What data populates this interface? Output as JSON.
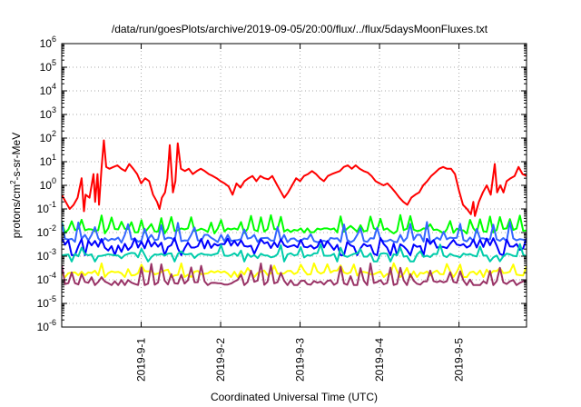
{
  "chart_data": {
    "type": "line",
    "title": "/data/run/goesPlots/archive/2019-09-05/20:00/flux/../flux/5daysMoonFluxes.txt",
    "xlabel": "Coordinated Universal Time (UTC)",
    "ylabel_base": "protons/cm",
    "ylabel_sup": "2",
    "ylabel_tail": "-s-sr-MeV",
    "y_scale": "log",
    "ylim": [
      1e-06,
      1000000.0
    ],
    "xlim": [
      0,
      5.85
    ],
    "x_unit": "days since 2019-08-31 00:00 UTC",
    "grid": true,
    "y_ticks": [
      {
        "base": "10",
        "exp": "-6",
        "v": -6
      },
      {
        "base": "10",
        "exp": "-5",
        "v": -5
      },
      {
        "base": "10",
        "exp": "-4",
        "v": -4
      },
      {
        "base": "10",
        "exp": "-3",
        "v": -3
      },
      {
        "base": "10",
        "exp": "-2",
        "v": -2
      },
      {
        "base": "10",
        "exp": "-1",
        "v": -1
      },
      {
        "base": "10",
        "exp": "0",
        "v": 0
      },
      {
        "base": "10",
        "exp": "1",
        "v": 1
      },
      {
        "base": "10",
        "exp": "2",
        "v": 2
      },
      {
        "base": "10",
        "exp": "3",
        "v": 3
      },
      {
        "base": "10",
        "exp": "4",
        "v": 4
      },
      {
        "base": "10",
        "exp": "5",
        "v": 5
      },
      {
        "base": "10",
        "exp": "6",
        "v": 6
      }
    ],
    "x_ticks": [
      {
        "label": "2019-9-1",
        "x": 1
      },
      {
        "label": "2019-9-2",
        "x": 2
      },
      {
        "label": "2019-9-3",
        "x": 3
      },
      {
        "label": "2019-9-4",
        "x": 4
      },
      {
        "label": "2019-9-5",
        "x": 5
      }
    ],
    "series": [
      {
        "color": "#ff0000",
        "points": [
          [
            0.0,
            0.4
          ],
          [
            0.05,
            0.2
          ],
          [
            0.1,
            0.1
          ],
          [
            0.15,
            0.15
          ],
          [
            0.2,
            0.3
          ],
          [
            0.25,
            2
          ],
          [
            0.28,
            0.08
          ],
          [
            0.3,
            0.4
          ],
          [
            0.35,
            0.3
          ],
          [
            0.4,
            3
          ],
          [
            0.42,
            0.2
          ],
          [
            0.45,
            3
          ],
          [
            0.47,
            0.15
          ],
          [
            0.5,
            5
          ],
          [
            0.53,
            80
          ],
          [
            0.56,
            6
          ],
          [
            0.6,
            5
          ],
          [
            0.65,
            6
          ],
          [
            0.7,
            7
          ],
          [
            0.75,
            5
          ],
          [
            0.8,
            4
          ],
          [
            0.85,
            8
          ],
          [
            0.9,
            5
          ],
          [
            0.95,
            3
          ],
          [
            1.0,
            1.2
          ],
          [
            1.05,
            2
          ],
          [
            1.1,
            1.5
          ],
          [
            1.15,
            0.4
          ],
          [
            1.2,
            0.2
          ],
          [
            1.23,
            0.1
          ],
          [
            1.26,
            0.3
          ],
          [
            1.3,
            0.5
          ],
          [
            1.33,
            2
          ],
          [
            1.36,
            50
          ],
          [
            1.4,
            0.5
          ],
          [
            1.43,
            1.5
          ],
          [
            1.46,
            60
          ],
          [
            1.5,
            5
          ],
          [
            1.55,
            4
          ],
          [
            1.6,
            5
          ],
          [
            1.65,
            3
          ],
          [
            1.7,
            4
          ],
          [
            1.75,
            5
          ],
          [
            1.8,
            4
          ],
          [
            1.85,
            3
          ],
          [
            1.9,
            2.5
          ],
          [
            1.95,
            2
          ],
          [
            2.0,
            1.5
          ],
          [
            2.05,
            1.2
          ],
          [
            2.1,
            0.9
          ],
          [
            2.15,
            0.4
          ],
          [
            2.2,
            1.2
          ],
          [
            2.25,
            0.8
          ],
          [
            2.3,
            1.5
          ],
          [
            2.35,
            2
          ],
          [
            2.4,
            2.5
          ],
          [
            2.45,
            1.5
          ],
          [
            2.5,
            2.5
          ],
          [
            2.55,
            2
          ],
          [
            2.6,
            1.8
          ],
          [
            2.65,
            2.5
          ],
          [
            2.7,
            1.2
          ],
          [
            2.75,
            0.6
          ],
          [
            2.8,
            0.3
          ],
          [
            2.85,
            0.5
          ],
          [
            2.9,
            1
          ],
          [
            2.95,
            2
          ],
          [
            3.0,
            1.5
          ],
          [
            3.05,
            2.5
          ],
          [
            3.1,
            3
          ],
          [
            3.15,
            4
          ],
          [
            3.2,
            3
          ],
          [
            3.25,
            2
          ],
          [
            3.3,
            1.5
          ],
          [
            3.35,
            2.5
          ],
          [
            3.4,
            3
          ],
          [
            3.45,
            3.5
          ],
          [
            3.5,
            4
          ],
          [
            3.55,
            6
          ],
          [
            3.6,
            7
          ],
          [
            3.65,
            5
          ],
          [
            3.7,
            7
          ],
          [
            3.75,
            5
          ],
          [
            3.8,
            4
          ],
          [
            3.85,
            3.5
          ],
          [
            3.9,
            2.5
          ],
          [
            3.95,
            1.5
          ],
          [
            4.0,
            1.2
          ],
          [
            4.05,
            1
          ],
          [
            4.1,
            1.2
          ],
          [
            4.15,
            0.8
          ],
          [
            4.2,
            0.5
          ],
          [
            4.25,
            0.3
          ],
          [
            4.3,
            0.2
          ],
          [
            4.35,
            0.15
          ],
          [
            4.4,
            0.3
          ],
          [
            4.45,
            0.4
          ],
          [
            4.5,
            0.5
          ],
          [
            4.55,
            1
          ],
          [
            4.6,
            1.5
          ],
          [
            4.65,
            2.5
          ],
          [
            4.7,
            3.5
          ],
          [
            4.75,
            5
          ],
          [
            4.8,
            6
          ],
          [
            4.85,
            5
          ],
          [
            4.9,
            5
          ],
          [
            4.95,
            3
          ],
          [
            5.0,
            0.6
          ],
          [
            5.05,
            0.15
          ],
          [
            5.1,
            0.1
          ],
          [
            5.15,
            0.06
          ],
          [
            5.18,
            0.2
          ],
          [
            5.2,
            0.05
          ],
          [
            5.25,
            0.2
          ],
          [
            5.3,
            0.5
          ],
          [
            5.35,
            1
          ],
          [
            5.4,
            0.4
          ],
          [
            5.45,
            8
          ],
          [
            5.48,
            0.5
          ],
          [
            5.52,
            1
          ],
          [
            5.56,
            0.5
          ],
          [
            5.6,
            1.5
          ],
          [
            5.65,
            2
          ],
          [
            5.7,
            2.5
          ],
          [
            5.75,
            6
          ],
          [
            5.8,
            3
          ],
          [
            5.85,
            2.5
          ]
        ]
      },
      {
        "color": "#00ff00",
        "base": 0.012,
        "spike_hi": 0.06,
        "spike_lo": 0.015,
        "spike_every": 3,
        "seed": 11
      },
      {
        "color": "#3366ff",
        "base": 0.005,
        "spike_hi": 0.03,
        "spike_lo": 0.008,
        "spike_every": 5,
        "seed": 23
      },
      {
        "color": "#0000ff",
        "base": 0.0028,
        "spike_hi": 0.006,
        "spike_lo": 0.0011,
        "spike_every": 2,
        "seed": 37
      },
      {
        "color": "#00ccaa",
        "base": 0.0011,
        "spike_hi": 0.0035,
        "spike_lo": 0.0006,
        "spike_every": 6,
        "seed": 41
      },
      {
        "color": "#ffff00",
        "base": 0.0002,
        "spike_hi": 0.0005,
        "spike_lo": 0.00013,
        "spike_every": 4,
        "seed": 53
      },
      {
        "color": "#993366",
        "base": 8e-05,
        "spike_hi": 0.0005,
        "spike_lo": 6e-05,
        "spike_every": 3,
        "seed": 67
      }
    ]
  }
}
